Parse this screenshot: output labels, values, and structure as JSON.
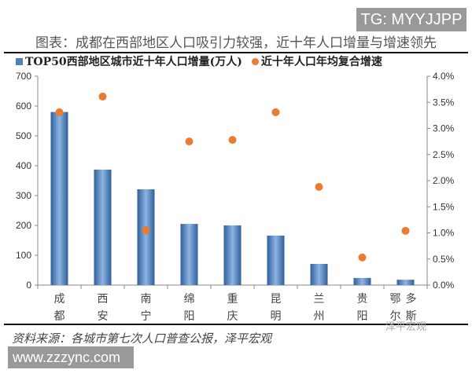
{
  "watermark_top": "TG: MYYJJPP",
  "watermark_bottom": "www.zzzync.com",
  "watermark_logo": "泽平宏观",
  "source": "资料来源：各城市第七次人口普查公报，泽平宏观",
  "chart_data": {
    "type": "bar+scatter",
    "title": "图表：成都在西部地区人口吸引力较强，近十年人口增量与增速领先",
    "categories": [
      "成都",
      "西安",
      "南宁",
      "绵阳",
      "重庆",
      "昆明",
      "兰州",
      "贵阳",
      "鄂尔多斯"
    ],
    "category_labels": [
      [
        "成",
        "都"
      ],
      [
        "西",
        "安"
      ],
      [
        "南",
        "宁"
      ],
      [
        "绵",
        "阳"
      ],
      [
        "重",
        "庆"
      ],
      [
        "昆",
        "明"
      ],
      [
        "兰",
        "州"
      ],
      [
        "贵",
        "阳"
      ],
      [
        "鄂多",
        "尔斯"
      ]
    ],
    "series": [
      {
        "name": "TOP50西部地区城市近十年人口增量(万人)",
        "type": "bar",
        "axis": "left",
        "color": "#4f81bd",
        "values": [
          580,
          387,
          321,
          205,
          200,
          166,
          71,
          24,
          18
        ]
      },
      {
        "name": "近十年人口年均复合增速",
        "type": "scatter",
        "axis": "right",
        "color": "#e97c30",
        "values": [
          3.31,
          3.61,
          1.05,
          2.75,
          2.78,
          3.31,
          1.88,
          0.53,
          1.04
        ]
      }
    ],
    "left_axis": {
      "ylim": [
        0,
        700
      ],
      "ticks": [
        "0",
        "100",
        "200",
        "300",
        "400",
        "500",
        "600",
        "700"
      ]
    },
    "right_axis": {
      "ylim": [
        0,
        4.0
      ],
      "ticks": [
        "0.0%",
        "0.5%",
        "1.0%",
        "1.5%",
        "2.0%",
        "2.5%",
        "3.0%",
        "3.5%",
        "4.0%"
      ]
    },
    "legend": "top",
    "grid": false
  }
}
